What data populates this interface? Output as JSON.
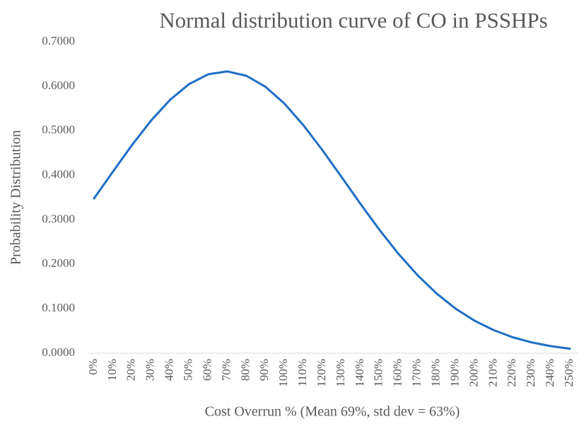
{
  "chart_data": {
    "type": "line",
    "title": "Normal distribution curve of CO in PSSHPs",
    "x_label": "Cost Overrun % (Mean 69%, std dev = 63%)",
    "y_label": "Probability Distribution",
    "categories": [
      "0%",
      "10%",
      "20%",
      "30%",
      "40%",
      "50%",
      "60%",
      "70%",
      "80%",
      "90%",
      "100%",
      "110%",
      "120%",
      "130%",
      "140%",
      "150%",
      "160%",
      "170%",
      "180%",
      "190%",
      "200%",
      "210%",
      "220%",
      "230%",
      "240%",
      "250%"
    ],
    "values": [
      0.3477,
      0.4085,
      0.468,
      0.5229,
      0.5697,
      0.6051,
      0.6269,
      0.6333,
      0.6237,
      0.5991,
      0.5611,
      0.5124,
      0.4564,
      0.3963,
      0.3356,
      0.2771,
      0.2231,
      0.1752,
      0.1341,
      0.1001,
      0.0729,
      0.0518,
      0.0358,
      0.0242,
      0.0159,
      0.0102
    ],
    "color": "#1f6fc5",
    "ylim": [
      0,
      0.7
    ],
    "yticks": [
      {
        "value": 0,
        "label": "0.0000"
      },
      {
        "value": 0.1,
        "label": "0.1000"
      },
      {
        "value": 0.2,
        "label": "0.2000"
      },
      {
        "value": 0.3,
        "label": "0.3000"
      },
      {
        "value": 0.4,
        "label": "0.4000"
      },
      {
        "value": 0.5,
        "label": "0.5000"
      },
      {
        "value": 0.6,
        "label": "0.6000"
      },
      {
        "value": 0.7,
        "label": "0.7000"
      }
    ],
    "grid": false
  }
}
